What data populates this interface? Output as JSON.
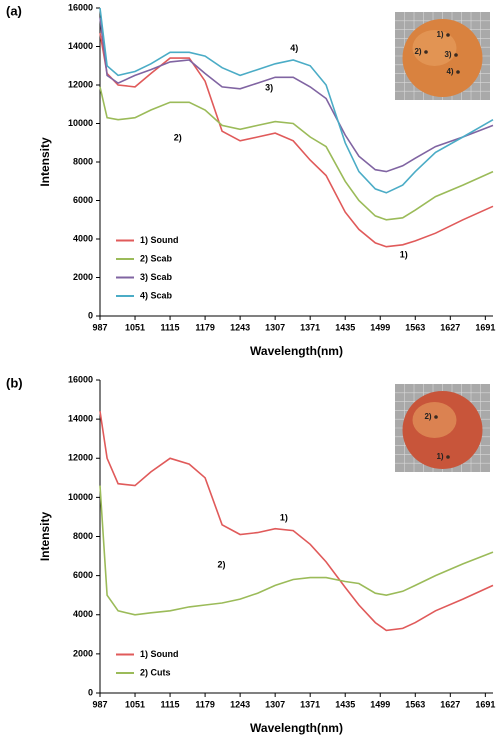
{
  "chart_data": [
    {
      "type": "line",
      "panel_label": "(a)",
      "x_label": "Wavelength(nm)",
      "y_label": "Intensity",
      "x": [
        987,
        1000,
        1020,
        1051,
        1080,
        1115,
        1150,
        1179,
        1210,
        1243,
        1275,
        1307,
        1340,
        1371,
        1400,
        1435,
        1460,
        1490,
        1510,
        1540,
        1563,
        1600,
        1650,
        1705
      ],
      "xlim": [
        987,
        1705
      ],
      "xticks": [
        987,
        1051,
        1115,
        1179,
        1243,
        1307,
        1371,
        1435,
        1499,
        1563,
        1627,
        1691
      ],
      "ylim": [
        0,
        16000
      ],
      "yticks": [
        0,
        2000,
        4000,
        6000,
        8000,
        10000,
        12000,
        14000,
        16000
      ],
      "legend": "lower left",
      "series": [
        {
          "name": "1) Sound",
          "color": "#e05a5a",
          "values": [
            14700,
            12600,
            12000,
            11900,
            12600,
            13400,
            13400,
            12200,
            9600,
            9100,
            9300,
            9500,
            9100,
            8100,
            7300,
            5400,
            4500,
            3800,
            3600,
            3700,
            3900,
            4300,
            5000,
            5700
          ]
        },
        {
          "name": "2) Scab",
          "color": "#9bbb59",
          "values": [
            11900,
            10300,
            10200,
            10300,
            10700,
            11100,
            11100,
            10700,
            9900,
            9700,
            9900,
            10100,
            10000,
            9300,
            8800,
            7000,
            6000,
            5200,
            5000,
            5100,
            5500,
            6200,
            6800,
            7500
          ]
        },
        {
          "name": "3) Scab",
          "color": "#8064a2",
          "values": [
            15500,
            12500,
            12100,
            12500,
            12800,
            13200,
            13300,
            12600,
            11900,
            11800,
            12100,
            12400,
            12400,
            11900,
            11300,
            9400,
            8300,
            7600,
            7500,
            7800,
            8200,
            8800,
            9300,
            9900
          ]
        },
        {
          "name": "4) Scab",
          "color": "#4bacc6",
          "values": [
            16000,
            13000,
            12500,
            12700,
            13100,
            13700,
            13700,
            13500,
            12900,
            12500,
            12800,
            13100,
            13300,
            13000,
            12000,
            9000,
            7500,
            6600,
            6400,
            6800,
            7500,
            8500,
            9300,
            10200
          ]
        }
      ],
      "annotations": [
        {
          "text": "4)",
          "x": 1342,
          "y": 13900
        },
        {
          "text": "3)",
          "x": 1296,
          "y": 11850
        },
        {
          "text": "2)",
          "x": 1129,
          "y": 9250
        },
        {
          "text": "1)",
          "x": 1542,
          "y": 3170
        }
      ],
      "inset_labels": [
        "1)",
        "2)",
        "3)",
        "4)"
      ]
    },
    {
      "type": "line",
      "panel_label": "(b)",
      "x_label": "Wavelength(nm)",
      "y_label": "Intensity",
      "x": [
        987,
        1000,
        1020,
        1051,
        1080,
        1115,
        1150,
        1179,
        1210,
        1243,
        1275,
        1307,
        1340,
        1371,
        1400,
        1435,
        1460,
        1490,
        1510,
        1540,
        1563,
        1600,
        1650,
        1705
      ],
      "xlim": [
        987,
        1705
      ],
      "xticks": [
        987,
        1051,
        1115,
        1179,
        1243,
        1307,
        1371,
        1435,
        1499,
        1563,
        1627,
        1691
      ],
      "ylim": [
        0,
        16000
      ],
      "yticks": [
        0,
        2000,
        4000,
        6000,
        8000,
        10000,
        12000,
        14000,
        16000
      ],
      "legend": "lower left",
      "series": [
        {
          "name": "1) Sound",
          "color": "#e05a5a",
          "values": [
            14400,
            12000,
            10700,
            10600,
            11300,
            12000,
            11700,
            11000,
            8600,
            8100,
            8200,
            8400,
            8300,
            7600,
            6700,
            5400,
            4500,
            3600,
            3200,
            3300,
            3600,
            4200,
            4800,
            5500
          ]
        },
        {
          "name": "2) Cuts",
          "color": "#9bbb59",
          "values": [
            10600,
            5000,
            4200,
            4000,
            4100,
            4200,
            4400,
            4500,
            4600,
            4800,
            5100,
            5500,
            5800,
            5900,
            5900,
            5700,
            5600,
            5100,
            5000,
            5200,
            5500,
            6000,
            6600,
            7200
          ]
        }
      ],
      "annotations": [
        {
          "text": "1)",
          "x": 1323,
          "y": 8950
        },
        {
          "text": "2)",
          "x": 1209,
          "y": 6540
        }
      ],
      "inset_labels": [
        "2)",
        "1)"
      ]
    }
  ]
}
